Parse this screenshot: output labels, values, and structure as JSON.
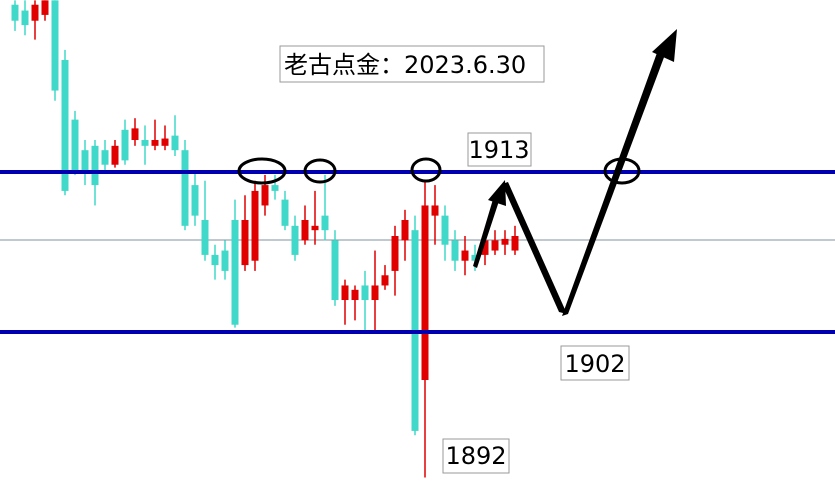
{
  "chart_data": {
    "type": "candlestick",
    "title": "老古点金：2023.6.30",
    "levels": [
      1913,
      1902
    ],
    "low_label": 1892,
    "open": [
      1924.5,
      1924.1,
      1923.4,
      1923.8,
      1924.8,
      1920.7,
      1916.6,
      1914.5,
      1914.8,
      1914.5,
      1913.5,
      1915.9,
      1915.2,
      1915.2,
      1914.8,
      1914.8,
      1915.5,
      1914.5,
      1912.1,
      1909.7,
      1907.3,
      1907.6,
      1909.7,
      1906.6,
      1906.9,
      1910.7,
      1912.1,
      1911.1,
      1909.3,
      1908.3,
      1909.0,
      1910.0,
      1908.3,
      1904.2,
      1904.2,
      1905.2,
      1904.2,
      1905.2,
      1906.2,
      1908.3,
      1909.0,
      1898.7,
      1910.0,
      1910.0,
      1908.3,
      1906.9,
      1907.3,
      1907.3,
      1907.6,
      1908.0,
      1907.6
    ],
    "high": [
      1924.8,
      1924.8,
      1924.8,
      1924.8,
      1924.8,
      1921.4,
      1917.2,
      1915.2,
      1915.2,
      1915.2,
      1915.2,
      1916.6,
      1916.7,
      1916.2,
      1916.6,
      1916.2,
      1916.9,
      1915.2,
      1913.1,
      1912.4,
      1908.0,
      1908.3,
      1911.1,
      1911.4,
      1912.4,
      1912.8,
      1912.8,
      1911.7,
      1910.0,
      1910.7,
      1911.7,
      1912.8,
      1909.0,
      1905.6,
      1905.2,
      1906.2,
      1907.6,
      1906.6,
      1909.3,
      1910.4,
      1910.0,
      1912.4,
      1912.1,
      1910.7,
      1909.0,
      1908.6,
      1908.0,
      1908.6,
      1909.0,
      1909.0,
      1909.3
    ],
    "low": [
      1922.7,
      1922.4,
      1922.1,
      1923.4,
      1917.9,
      1911.4,
      1912.8,
      1912.1,
      1910.7,
      1913.1,
      1913.3,
      1913.5,
      1914.8,
      1913.5,
      1914.5,
      1914.5,
      1914.1,
      1909.0,
      1909.3,
      1906.9,
      1905.6,
      1905.6,
      1902.3,
      1906.2,
      1906.2,
      1910.0,
      1911.1,
      1909.0,
      1906.9,
      1908.0,
      1908.0,
      1908.3,
      1903.8,
      1902.5,
      1902.8,
      1902.1,
      1902.1,
      1904.9,
      1904.5,
      1906.9,
      1894.9,
      1892.0,
      1908.0,
      1906.9,
      1906.2,
      1905.9,
      1906.2,
      1906.6,
      1907.3,
      1907.3,
      1907.3
    ],
    "close": [
      1923.4,
      1923.1,
      1924.5,
      1924.8,
      1918.6,
      1911.7,
      1913.1,
      1913.1,
      1912.1,
      1913.5,
      1914.8,
      1913.8,
      1916.0,
      1914.8,
      1915.2,
      1915.3,
      1914.5,
      1909.3,
      1910.0,
      1907.3,
      1906.6,
      1906.2,
      1902.5,
      1909.7,
      1911.7,
      1912.1,
      1911.7,
      1909.3,
      1907.3,
      1909.7,
      1909.3,
      1909.0,
      1904.2,
      1905.2,
      1904.9,
      1904.2,
      1905.2,
      1905.9,
      1908.6,
      1909.7,
      1895.2,
      1910.7,
      1910.7,
      1908.0,
      1906.9,
      1907.6,
      1906.9,
      1908.3,
      1908.3,
      1908.4,
      1908.6
    ],
    "up_color": "#e00000",
    "down_color": "#40d8c8",
    "level_color": "#0000b0"
  }
}
